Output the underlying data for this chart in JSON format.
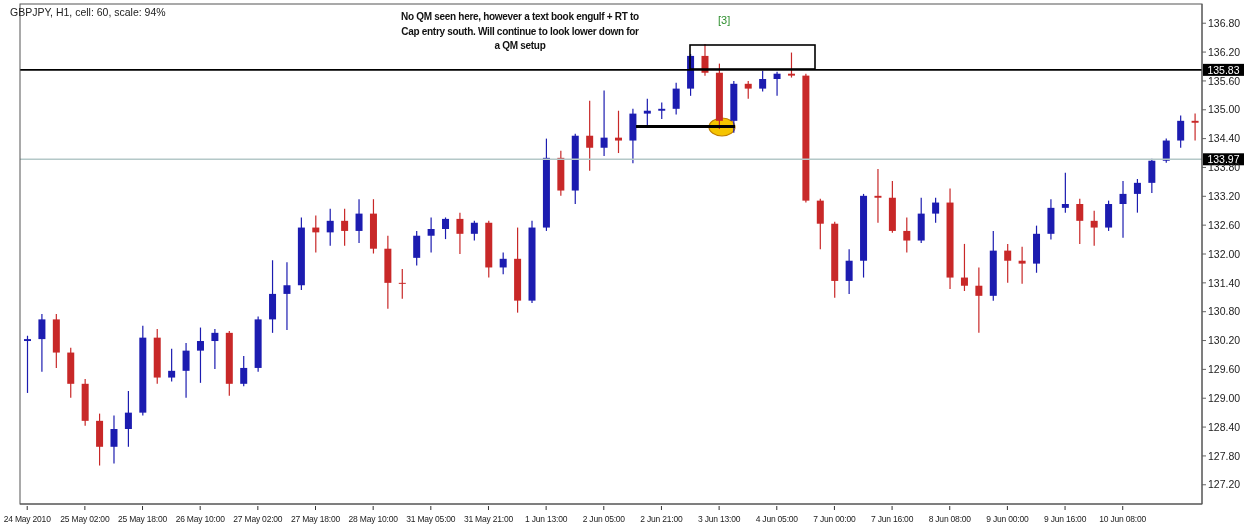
{
  "chart_data": {
    "type": "candlestick",
    "title": "GBPJPY, H1, cell: 60, scale: 94%",
    "annotations": [
      "No QM seen here, however a text book engulf + RT to Cap entry south. Will continue to look lower down for a QM setup",
      "[3]"
    ],
    "categories": [
      "24 May 2010",
      null,
      null,
      null,
      "25 May 02:00",
      null,
      null,
      null,
      "25 May 18:00",
      null,
      null,
      null,
      "26 May 10:00",
      null,
      null,
      null,
      "27 May 02:00",
      null,
      null,
      null,
      "27 May 18:00",
      null,
      null,
      null,
      "28 May 10:00",
      null,
      null,
      null,
      "31 May 05:00",
      null,
      null,
      null,
      "31 May 21:00",
      null,
      null,
      null,
      "1 Jun 13:00",
      null,
      null,
      null,
      "2 Jun 05:00",
      null,
      null,
      null,
      "2 Jun 21:00",
      null,
      null,
      null,
      "3 Jun 13:00",
      null,
      null,
      null,
      "4 Jun 05:00",
      null,
      null,
      null,
      "7 Jun 00:00",
      null,
      null,
      null,
      "7 Jun 16:00",
      null,
      null,
      null,
      "8 Jun 08:00",
      null,
      null,
      null,
      "9 Jun 00:00",
      null,
      null,
      null,
      "9 Jun 16:00",
      null,
      null,
      null,
      "10 Jun 08:00",
      null,
      null,
      null,
      null,
      null
    ],
    "ohlc": [
      [
        130.19,
        130.3,
        129.11,
        130.23
      ],
      [
        130.23,
        130.75,
        129.55,
        130.64
      ],
      [
        130.64,
        130.75,
        129.63,
        129.95
      ],
      [
        129.95,
        130.05,
        129.01,
        129.3
      ],
      [
        129.3,
        129.4,
        128.43,
        128.53
      ],
      [
        128.53,
        128.68,
        127.6,
        127.99
      ],
      [
        127.99,
        128.64,
        127.64,
        128.36
      ],
      [
        128.36,
        129.15,
        127.99,
        128.7
      ],
      [
        128.7,
        130.51,
        128.64,
        130.26
      ],
      [
        130.26,
        130.44,
        129.3,
        129.43
      ],
      [
        129.43,
        130.03,
        129.35,
        129.57
      ],
      [
        129.57,
        130.15,
        129.01,
        129.99
      ],
      [
        129.99,
        130.47,
        129.32,
        130.19
      ],
      [
        130.19,
        130.44,
        129.61,
        130.36
      ],
      [
        130.36,
        130.4,
        129.05,
        129.3
      ],
      [
        129.3,
        129.88,
        129.25,
        129.63
      ],
      [
        129.63,
        130.7,
        129.55,
        130.64
      ],
      [
        130.64,
        131.87,
        130.36,
        131.17
      ],
      [
        131.17,
        131.83,
        130.42,
        131.35
      ],
      [
        131.35,
        132.76,
        131.25,
        132.55
      ],
      [
        132.55,
        132.8,
        132.03,
        132.45
      ],
      [
        132.45,
        132.94,
        132.17,
        132.69
      ],
      [
        132.69,
        132.94,
        132.17,
        132.48
      ],
      [
        132.48,
        133.14,
        132.23,
        132.84
      ],
      [
        132.84,
        133.14,
        132.01,
        132.11
      ],
      [
        132.11,
        132.38,
        130.86,
        131.4
      ],
      [
        131.4,
        131.69,
        131.07,
        131.38
      ],
      [
        131.92,
        132.48,
        131.76,
        132.38
      ],
      [
        132.38,
        132.76,
        132.03,
        132.52
      ],
      [
        132.52,
        132.76,
        132.31,
        132.73
      ],
      [
        132.73,
        132.86,
        132.0,
        132.42
      ],
      [
        132.42,
        132.69,
        132.28,
        132.65
      ],
      [
        132.65,
        132.69,
        131.51,
        131.72
      ],
      [
        131.72,
        132.03,
        131.58,
        131.9
      ],
      [
        131.9,
        132.55,
        130.78,
        131.03
      ],
      [
        131.03,
        132.69,
        130.98,
        132.55
      ],
      [
        132.55,
        134.4,
        132.48,
        134.0
      ],
      [
        134.0,
        134.15,
        133.21,
        133.32
      ],
      [
        133.32,
        134.5,
        133.04,
        134.46
      ],
      [
        134.46,
        135.19,
        133.73,
        134.21
      ],
      [
        134.21,
        135.4,
        134.04,
        134.42
      ],
      [
        134.42,
        134.98,
        134.1,
        134.36
      ],
      [
        134.36,
        135.02,
        133.89,
        134.92
      ],
      [
        134.92,
        135.23,
        134.63,
        134.98
      ],
      [
        134.98,
        135.15,
        134.81,
        135.02
      ],
      [
        135.02,
        135.56,
        134.9,
        135.44
      ],
      [
        135.44,
        136.16,
        135.29,
        136.12
      ],
      [
        136.12,
        136.37,
        135.71,
        135.77
      ],
      [
        135.77,
        135.96,
        134.6,
        134.77
      ],
      [
        134.77,
        135.6,
        134.52,
        135.54
      ],
      [
        135.54,
        135.6,
        135.23,
        135.44
      ],
      [
        135.44,
        135.81,
        135.38,
        135.64
      ],
      [
        135.64,
        135.79,
        135.29,
        135.75
      ],
      [
        135.75,
        136.19,
        135.67,
        135.71
      ],
      [
        135.71,
        135.75,
        133.07,
        133.11
      ],
      [
        133.11,
        133.15,
        132.1,
        132.63
      ],
      [
        132.63,
        132.67,
        131.09,
        131.44
      ],
      [
        131.44,
        132.1,
        131.17,
        131.86
      ],
      [
        131.86,
        133.25,
        131.51,
        133.21
      ],
      [
        133.21,
        133.77,
        132.65,
        133.17
      ],
      [
        133.17,
        133.52,
        132.44,
        132.48
      ],
      [
        132.48,
        132.76,
        132.03,
        132.28
      ],
      [
        132.28,
        133.17,
        132.23,
        132.84
      ],
      [
        132.84,
        133.17,
        132.65,
        133.07
      ],
      [
        133.07,
        133.36,
        131.27,
        131.51
      ],
      [
        131.51,
        132.21,
        131.23,
        131.34
      ],
      [
        131.34,
        131.72,
        130.36,
        131.13
      ],
      [
        131.13,
        132.48,
        131.03,
        132.07
      ],
      [
        132.07,
        132.21,
        131.4,
        131.86
      ],
      [
        131.86,
        132.15,
        131.38,
        131.8
      ],
      [
        131.8,
        132.59,
        131.61,
        132.42
      ],
      [
        132.42,
        133.14,
        132.3,
        132.96
      ],
      [
        132.96,
        133.69,
        132.86,
        133.04
      ],
      [
        133.04,
        133.15,
        132.21,
        132.69
      ],
      [
        132.69,
        132.9,
        132.17,
        132.55
      ],
      [
        132.55,
        133.11,
        132.48,
        133.04
      ],
      [
        133.04,
        133.52,
        132.34,
        133.25
      ],
      [
        133.25,
        133.56,
        132.86,
        133.48
      ],
      [
        133.48,
        133.98,
        133.27,
        133.94
      ],
      [
        133.94,
        134.4,
        133.9,
        134.36
      ],
      [
        134.36,
        134.88,
        134.21,
        134.77
      ],
      [
        134.77,
        134.92,
        134.36,
        134.73
      ]
    ],
    "colors": [
      "#1c1cb0",
      "#1c1cb0",
      "#c82828",
      "#c82828",
      "#c82828",
      "#c82828",
      "#1c1cb0",
      "#1c1cb0",
      "#1c1cb0",
      "#c82828",
      "#1c1cb0",
      "#1c1cb0",
      "#1c1cb0",
      "#1c1cb0",
      "#c82828",
      "#1c1cb0",
      "#1c1cb0",
      "#1c1cb0",
      "#1c1cb0",
      "#1c1cb0",
      "#c82828",
      "#1c1cb0",
      "#c82828",
      "#1c1cb0",
      "#c82828",
      "#c82828",
      "#c82828",
      "#1c1cb0",
      "#1c1cb0",
      "#1c1cb0",
      "#c82828",
      "#1c1cb0",
      "#c82828",
      "#1c1cb0",
      "#c82828",
      "#1c1cb0",
      "#1c1cb0",
      "#c82828",
      "#1c1cb0",
      "#c82828",
      "#1c1cb0",
      "#c82828",
      "#1c1cb0",
      "#1c1cb0",
      "#1c1cb0",
      "#1c1cb0",
      "#1c1cb0",
      "#c82828",
      "#c82828",
      "#1c1cb0",
      "#c82828",
      "#1c1cb0",
      "#1c1cb0",
      "#c82828",
      "#c82828",
      "#c82828",
      "#c82828",
      "#1c1cb0",
      "#1c1cb0",
      "#c82828",
      "#c82828",
      "#c82828",
      "#1c1cb0",
      "#1c1cb0",
      "#c82828",
      "#c82828",
      "#c82828",
      "#1c1cb0",
      "#c82828",
      "#c82828",
      "#1c1cb0",
      "#1c1cb0",
      "#1c1cb0",
      "#c82828",
      "#c82828",
      "#1c1cb0",
      "#1c1cb0",
      "#1c1cb0",
      "#1c1cb0",
      "#1c1cb0",
      "#1c1cb0",
      "#c82828"
    ],
    "ylim": [
      126.8,
      137.2
    ],
    "yticks": [
      {
        "value": 136.8,
        "label": "136.80"
      },
      {
        "value": 136.2,
        "label": "136.20"
      },
      {
        "value": 135.6,
        "label": "135.60"
      },
      {
        "value": 135,
        "label": "135.00"
      },
      {
        "value": 134.4,
        "label": "134.40"
      },
      {
        "value": 133.8,
        "label": "133.80"
      },
      {
        "value": 133.2,
        "label": "133.20"
      },
      {
        "value": 132.6,
        "label": "132.60"
      },
      {
        "value": 132,
        "label": "132.00"
      },
      {
        "value": 131.4,
        "label": "131.40"
      },
      {
        "value": 130.8,
        "label": "130.80"
      },
      {
        "value": 130.2,
        "label": "130.20"
      },
      {
        "value": 129.6,
        "label": "129.60"
      },
      {
        "value": 129,
        "label": "129.00"
      },
      {
        "value": 128.4,
        "label": "128.40"
      },
      {
        "value": 127.8,
        "label": "127.80"
      },
      {
        "value": 127.2,
        "label": "127.20"
      }
    ],
    "ref_lines": [
      {
        "axis": "y",
        "value": 135.83,
        "label": "135.83",
        "color": "#000000"
      },
      {
        "axis": "y",
        "value": 133.97,
        "label": "133.97",
        "color": "#b4c8c8"
      }
    ]
  }
}
